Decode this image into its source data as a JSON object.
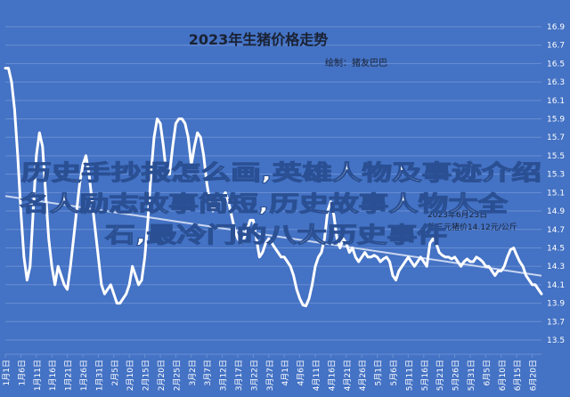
{
  "chart_data": {
    "type": "line",
    "title": "2023年生猪价格走势",
    "subtitle": "绘制：猪友巴巴",
    "xlabel": "",
    "ylabel": "",
    "ylim": [
      13.5,
      16.9
    ],
    "y_ticks": [
      "16.9",
      "16.7",
      "16.5",
      "16.3",
      "16.1",
      "15.9",
      "15.7",
      "15.5",
      "15.3",
      "15.1",
      "14.9",
      "14.7",
      "14.5",
      "14.3",
      "14.1",
      "13.9",
      "13.7",
      "13.5"
    ],
    "x_tick_labels": [
      "1月1日",
      "1月6日",
      "1月11日",
      "1月16日",
      "1月21日",
      "1月26日",
      "1月31日",
      "2月5日",
      "2月10日",
      "2月15日",
      "2月20日",
      "2月25日",
      "3月2日",
      "3月7日",
      "3月12日",
      "3月17日",
      "3月22日",
      "3月27日",
      "4月1日",
      "4月6日",
      "4月11日",
      "4月16日",
      "4月21日",
      "4月26日",
      "5月1日",
      "5月6日",
      "5月11日",
      "5月16日",
      "5月21日",
      "5月26日",
      "5月31日",
      "6月5日",
      "6月10日",
      "6月15日",
      "6月20日"
    ],
    "grid": true,
    "x": [
      1,
      2,
      3,
      4,
      5,
      6,
      7,
      8,
      9,
      10,
      11,
      12,
      13,
      14,
      15,
      16,
      17,
      18,
      19,
      20,
      21,
      22,
      23,
      24,
      25,
      26,
      27,
      28,
      29,
      30,
      31,
      32,
      33,
      34,
      35,
      36,
      37,
      38,
      39,
      40,
      41,
      42,
      43,
      44,
      45,
      46,
      47,
      48,
      49,
      50,
      51,
      52,
      53,
      54,
      55,
      56,
      57,
      58,
      59,
      60,
      61,
      62,
      63,
      64,
      65,
      66,
      67,
      68,
      69,
      70,
      71,
      72,
      73,
      74,
      75,
      76,
      77,
      78,
      79,
      80,
      81,
      82,
      83,
      84,
      85,
      86,
      87,
      88,
      89,
      90,
      91,
      92,
      93,
      94,
      95,
      96,
      97,
      98,
      99,
      100,
      101,
      102,
      103,
      104,
      105,
      106,
      107,
      108,
      109,
      110,
      111,
      112,
      113,
      114,
      115,
      116,
      117,
      118,
      119,
      120,
      121,
      122,
      123,
      124,
      125,
      126,
      127,
      128,
      129,
      130,
      131,
      132,
      133,
      134,
      135,
      136,
      137,
      138,
      139,
      140,
      141,
      142,
      143,
      144,
      145,
      146,
      147,
      148,
      149,
      150,
      151,
      152,
      153,
      154,
      155,
      156,
      157,
      158,
      159,
      160,
      161,
      162,
      163,
      164,
      165,
      166,
      167,
      168,
      169,
      170,
      171,
      172,
      173,
      174
    ],
    "values": [
      16.45,
      16.45,
      16.3,
      16.0,
      15.5,
      14.9,
      14.4,
      14.15,
      14.3,
      14.9,
      15.5,
      15.75,
      15.6,
      15.1,
      14.6,
      14.3,
      14.1,
      14.3,
      14.2,
      14.1,
      14.05,
      14.3,
      14.6,
      14.9,
      15.2,
      15.4,
      15.5,
      15.3,
      15.0,
      14.7,
      14.4,
      14.1,
      14.0,
      14.05,
      14.1,
      14.0,
      13.9,
      13.9,
      13.95,
      14.0,
      14.1,
      14.3,
      14.2,
      14.1,
      14.15,
      14.4,
      14.8,
      15.3,
      15.7,
      15.9,
      15.85,
      15.6,
      15.3,
      15.3,
      15.6,
      15.85,
      15.9,
      15.9,
      15.85,
      15.7,
      15.4,
      15.6,
      15.75,
      15.7,
      15.5,
      15.2,
      15.0,
      14.9,
      14.95,
      15.0,
      15.05,
      15.1,
      15.0,
      14.85,
      14.7,
      14.6,
      14.55,
      14.6,
      14.7,
      14.8,
      14.8,
      14.6,
      14.4,
      14.45,
      14.55,
      14.6,
      14.55,
      14.5,
      14.45,
      14.4,
      14.4,
      14.35,
      14.3,
      14.2,
      14.05,
      13.95,
      13.88,
      13.87,
      13.95,
      14.1,
      14.3,
      14.4,
      14.45,
      14.6,
      14.9,
      15.0,
      14.85,
      14.6,
      14.5,
      14.6,
      14.55,
      14.45,
      14.5,
      14.4,
      14.35,
      14.4,
      14.45,
      14.4,
      14.4,
      14.42,
      14.4,
      14.35,
      14.38,
      14.4,
      14.35,
      14.2,
      14.15,
      14.25,
      14.3,
      14.35,
      14.4,
      14.35,
      14.3,
      14.35,
      14.4,
      14.35,
      14.3,
      14.55,
      14.6,
      14.55,
      14.45,
      14.42,
      14.4,
      14.4,
      14.38,
      14.4,
      14.35,
      14.3,
      14.35,
      14.38,
      14.35,
      14.35,
      14.4,
      14.38,
      14.35,
      14.3,
      14.3,
      14.25,
      14.2,
      14.25,
      14.25,
      14.3,
      14.4,
      14.48,
      14.5,
      14.42,
      14.35,
      14.3,
      14.2,
      14.15,
      14.1,
      14.1,
      14.05,
      14.0
    ],
    "trendline": true,
    "annotation": "2023年6月23日\n外三元猪价14.12元/公斤"
  },
  "watermark": {
    "lines": [
      "历史手抄报怎么画,英雄人物及事迹介绍",
      "名人励志故事简短,历史故事人物大全",
      "石,最冷门的八大历史事件"
    ]
  },
  "colors": {
    "background": "#4472c4",
    "line": "#ffffff",
    "trend": "#c9d6f0",
    "grid": "#6a8fd4",
    "text": "#ffffff",
    "title": "#1a2233"
  }
}
